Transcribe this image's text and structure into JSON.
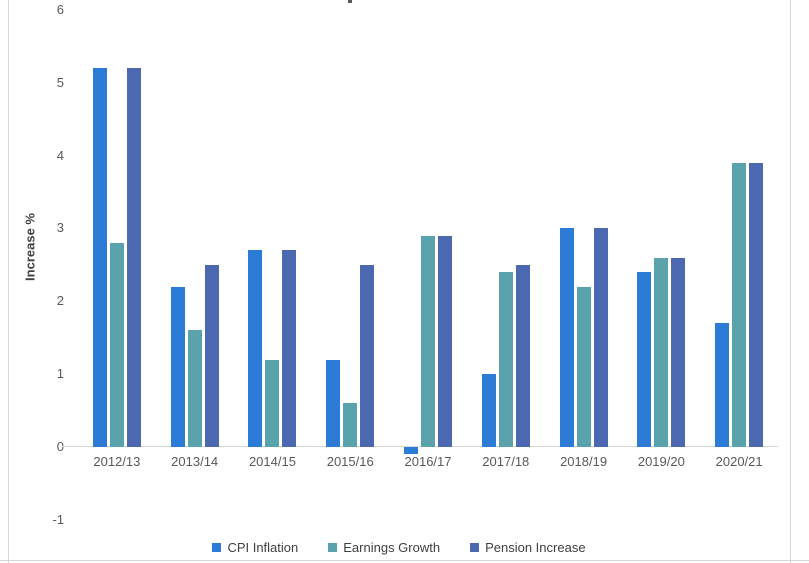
{
  "ui": {
    "ylabel_text": "Increase %"
  },
  "chart_data": {
    "type": "bar",
    "title": "",
    "xlabel": "",
    "ylabel": "Increase %",
    "categories": [
      "2012/13",
      "2013/14",
      "2014/15",
      "2015/16",
      "2016/17",
      "2017/18",
      "2018/19",
      "2019/20",
      "2020/21"
    ],
    "series": [
      {
        "name": "CPI Inflation",
        "color": "#2b7bd7",
        "values": [
          5.2,
          2.2,
          2.7,
          1.2,
          -0.1,
          1.0,
          3.0,
          2.4,
          1.7
        ]
      },
      {
        "name": "Earnings Growth",
        "color": "#5ba3ac",
        "values": [
          2.8,
          1.6,
          1.2,
          0.6,
          2.9,
          2.4,
          2.2,
          2.6,
          3.9
        ]
      },
      {
        "name": "Pension Increase",
        "color": "#4c68b0",
        "values": [
          5.2,
          2.5,
          2.7,
          2.5,
          2.9,
          2.5,
          3.0,
          2.6,
          3.9
        ]
      }
    ],
    "y_ticks": [
      6,
      5,
      4,
      3,
      2,
      1,
      0,
      -1
    ],
    "ylim": [
      -1,
      6
    ],
    "grid": false,
    "legend_position": "bottom",
    "colors": {
      "tick_text": "#595959",
      "legend_text": "#404040",
      "axis_line": "#d9d9d9"
    }
  }
}
